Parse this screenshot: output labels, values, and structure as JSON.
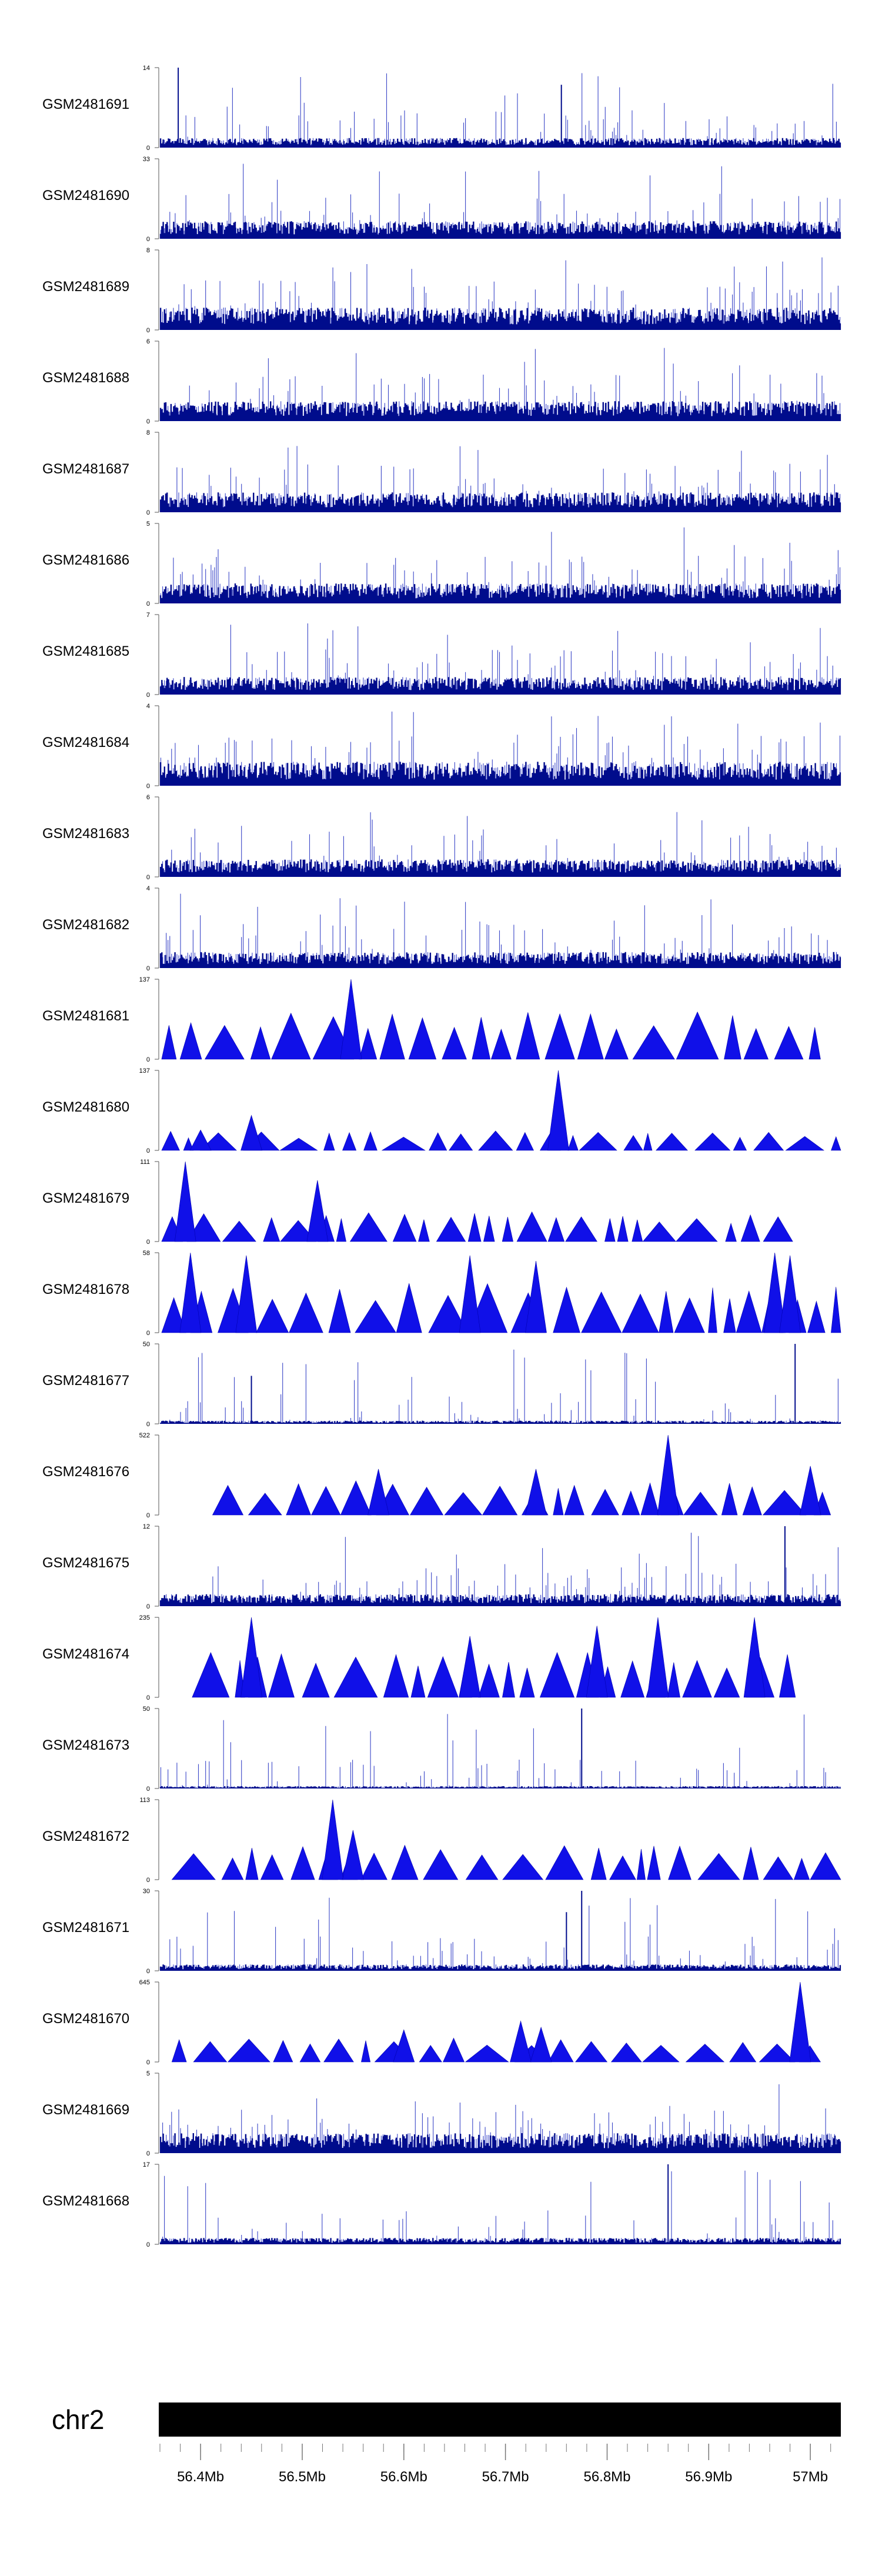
{
  "chart_data": {
    "type": "area",
    "chromosome": "chr2",
    "x_axis": {
      "unit": "Mb",
      "range": [
        56.36,
        57.03
      ],
      "ticks": [
        {
          "value": 56.4,
          "label": "56.4Mb"
        },
        {
          "value": 56.5,
          "label": "56.5Mb"
        },
        {
          "value": 56.6,
          "label": "56.6Mb"
        },
        {
          "value": 56.7,
          "label": "56.7Mb"
        },
        {
          "value": 56.8,
          "label": "56.8Mb"
        },
        {
          "value": 56.9,
          "label": "56.9Mb"
        },
        {
          "value": 57.0,
          "label": "57Mb"
        }
      ]
    },
    "tracks": [
      {
        "name": "GSM2481691",
        "max": 14,
        "min": 0,
        "style": "dense",
        "seed": 11,
        "base": 0.12,
        "peaks": [
          {
            "x": 56.378,
            "v": 14
          },
          {
            "x": 56.755,
            "v": 11
          }
        ]
      },
      {
        "name": "GSM2481690",
        "max": 33,
        "min": 0,
        "style": "dense",
        "seed": 12,
        "base": 0.22,
        "peaks": []
      },
      {
        "name": "GSM2481689",
        "max": 8,
        "min": 0,
        "style": "dense",
        "seed": 13,
        "base": 0.28,
        "peaks": []
      },
      {
        "name": "GSM2481688",
        "max": 6,
        "min": 0,
        "style": "dense",
        "seed": 14,
        "base": 0.25,
        "peaks": []
      },
      {
        "name": "GSM2481687",
        "max": 8,
        "min": 0,
        "style": "dense",
        "seed": 15,
        "base": 0.25,
        "peaks": []
      },
      {
        "name": "GSM2481686",
        "max": 5,
        "min": 0,
        "style": "dense",
        "seed": 16,
        "base": 0.25,
        "peaks": []
      },
      {
        "name": "GSM2481685",
        "max": 7,
        "min": 0,
        "style": "dense",
        "seed": 17,
        "base": 0.22,
        "peaks": []
      },
      {
        "name": "GSM2481684",
        "max": 4,
        "min": 0,
        "style": "dense",
        "seed": 18,
        "base": 0.3,
        "peaks": []
      },
      {
        "name": "GSM2481683",
        "max": 6,
        "min": 0,
        "style": "dense",
        "seed": 19,
        "base": 0.22,
        "peaks": []
      },
      {
        "name": "GSM2481682",
        "max": 4,
        "min": 0,
        "style": "dense",
        "seed": 20,
        "base": 0.2,
        "peaks": []
      },
      {
        "name": "GSM2481681",
        "max": 137,
        "min": 0,
        "style": "triangles",
        "seed": 21,
        "span": [
          56.36,
          57.01
        ],
        "level": 0.5,
        "peaks": [
          {
            "x": 56.548,
            "v": 137
          }
        ]
      },
      {
        "name": "GSM2481680",
        "max": 137,
        "min": 0,
        "style": "triangles",
        "seed": 22,
        "span": [
          56.36,
          57.03
        ],
        "level": 0.2,
        "peaks": [
          {
            "x": 56.45,
            "v": 60
          },
          {
            "x": 56.4,
            "v": 35
          },
          {
            "x": 56.752,
            "v": 137
          }
        ]
      },
      {
        "name": "GSM2481679",
        "max": 111,
        "min": 0,
        "style": "triangles",
        "seed": 23,
        "span": [
          56.36,
          56.99
        ],
        "level": 0.3,
        "peaks": [
          {
            "x": 56.385,
            "v": 111
          },
          {
            "x": 56.515,
            "v": 85
          }
        ]
      },
      {
        "name": "GSM2481678",
        "max": 58,
        "min": 0,
        "style": "triangles",
        "seed": 24,
        "span": [
          56.36,
          57.03
        ],
        "level": 0.5,
        "peaks": [
          {
            "x": 56.39,
            "v": 58
          },
          {
            "x": 56.445,
            "v": 56
          },
          {
            "x": 56.665,
            "v": 56
          },
          {
            "x": 56.73,
            "v": 52
          },
          {
            "x": 56.965,
            "v": 58
          },
          {
            "x": 56.98,
            "v": 56
          }
        ]
      },
      {
        "name": "GSM2481677",
        "max": 50,
        "min": 0,
        "style": "dense",
        "seed": 25,
        "base": 0.04,
        "peaks": [
          {
            "x": 56.45,
            "v": 30
          },
          {
            "x": 56.985,
            "v": 50
          }
        ]
      },
      {
        "name": "GSM2481676",
        "max": 522,
        "min": 0,
        "style": "triangles",
        "seed": 26,
        "span": [
          56.41,
          57.02
        ],
        "level": 0.35,
        "peaks": [
          {
            "x": 56.575,
            "v": 300
          },
          {
            "x": 56.73,
            "v": 300
          },
          {
            "x": 56.86,
            "v": 522
          },
          {
            "x": 57.0,
            "v": 320
          }
        ]
      },
      {
        "name": "GSM2481675",
        "max": 12,
        "min": 0,
        "style": "dense",
        "seed": 27,
        "base": 0.15,
        "peaks": [
          {
            "x": 56.975,
            "v": 12
          }
        ]
      },
      {
        "name": "GSM2481674",
        "max": 235,
        "min": 0,
        "style": "triangles",
        "seed": 28,
        "span": [
          56.39,
          56.99
        ],
        "level": 0.45,
        "peaks": [
          {
            "x": 56.45,
            "v": 235
          },
          {
            "x": 56.665,
            "v": 180
          },
          {
            "x": 56.79,
            "v": 210
          },
          {
            "x": 56.85,
            "v": 235
          },
          {
            "x": 56.945,
            "v": 235
          }
        ]
      },
      {
        "name": "GSM2481673",
        "max": 50,
        "min": 0,
        "style": "dense",
        "seed": 29,
        "base": 0.03,
        "peaks": [
          {
            "x": 56.775,
            "v": 50
          }
        ]
      },
      {
        "name": "GSM2481672",
        "max": 113,
        "min": 0,
        "style": "triangles",
        "seed": 30,
        "span": [
          56.37,
          57.03
        ],
        "level": 0.35,
        "peaks": [
          {
            "x": 56.53,
            "v": 113
          },
          {
            "x": 56.55,
            "v": 70
          }
        ]
      },
      {
        "name": "GSM2481671",
        "max": 30,
        "min": 0,
        "style": "dense",
        "seed": 31,
        "base": 0.08,
        "peaks": [
          {
            "x": 56.775,
            "v": 30
          },
          {
            "x": 56.76,
            "v": 22
          }
        ]
      },
      {
        "name": "GSM2481670",
        "max": 645,
        "min": 0,
        "style": "triangles",
        "seed": 32,
        "span": [
          56.37,
          57.01
        ],
        "level": 0.25,
        "peaks": [
          {
            "x": 56.6,
            "v": 260
          },
          {
            "x": 56.715,
            "v": 330
          },
          {
            "x": 56.735,
            "v": 280
          },
          {
            "x": 56.99,
            "v": 645
          }
        ]
      },
      {
        "name": "GSM2481669",
        "max": 5,
        "min": 0,
        "style": "dense",
        "seed": 33,
        "base": 0.25,
        "peaks": []
      },
      {
        "name": "GSM2481668",
        "max": 17,
        "min": 0,
        "style": "dense",
        "seed": 34,
        "base": 0.08,
        "peaks": [
          {
            "x": 56.86,
            "v": 17
          }
        ]
      }
    ]
  }
}
